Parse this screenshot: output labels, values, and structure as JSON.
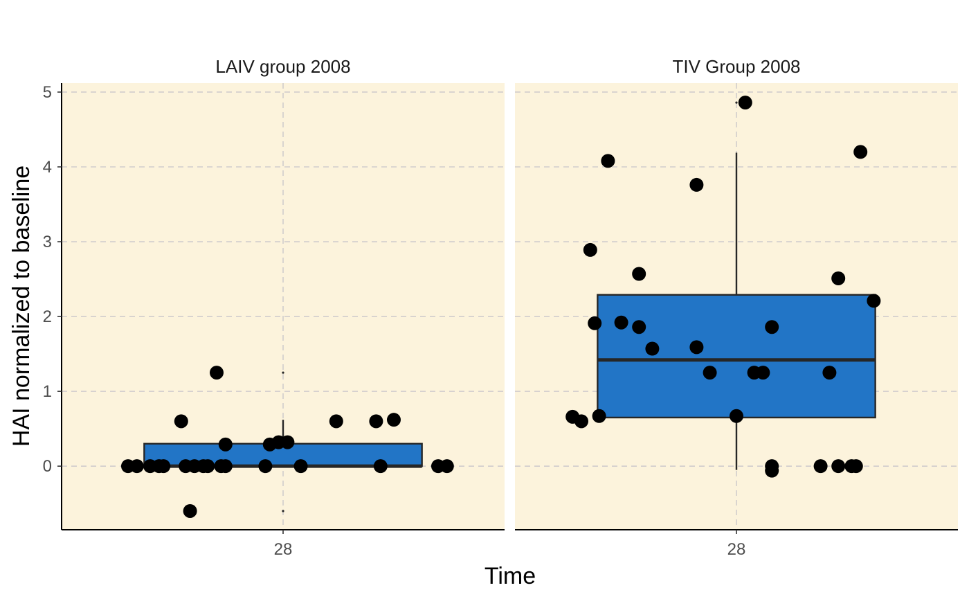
{
  "chart_data": {
    "type": "boxplot",
    "xlabel": "Time",
    "ylabel": "HAI normalized to baseline",
    "ylim": [
      -0.85,
      5.12
    ],
    "yticks": [
      0,
      1,
      2,
      3,
      4,
      5
    ],
    "grid": true,
    "grid_style": "dashed",
    "colors": {
      "panel_background": "#fcf3dc",
      "box_fill": "#2275c6",
      "box_line": "#262626",
      "point": "#000000",
      "grid": "#d0cccc"
    },
    "panels": [
      {
        "title": "LAIV group 2008",
        "category": "28",
        "box": {
          "q1": 0.0,
          "median": 0.0,
          "q3": 0.3,
          "whisker_low": 0.0,
          "whisker_high": 0.62
        },
        "outliers": [
          1.25,
          -0.6
        ],
        "points": [
          {
            "jitter": -0.35,
            "y": 0.0
          },
          {
            "jitter": -0.33,
            "y": 0.0
          },
          {
            "jitter": -0.3,
            "y": 0.0
          },
          {
            "jitter": -0.28,
            "y": 0.0
          },
          {
            "jitter": -0.27,
            "y": 0.0
          },
          {
            "jitter": -0.23,
            "y": 0.6
          },
          {
            "jitter": -0.22,
            "y": 0.0
          },
          {
            "jitter": -0.21,
            "y": -0.6
          },
          {
            "jitter": -0.2,
            "y": 0.0
          },
          {
            "jitter": -0.18,
            "y": 0.0
          },
          {
            "jitter": -0.17,
            "y": 0.0
          },
          {
            "jitter": -0.15,
            "y": 1.25
          },
          {
            "jitter": -0.14,
            "y": 0.0
          },
          {
            "jitter": -0.13,
            "y": 0.0
          },
          {
            "jitter": -0.13,
            "y": 0.29
          },
          {
            "jitter": -0.04,
            "y": 0.0
          },
          {
            "jitter": -0.03,
            "y": 0.29
          },
          {
            "jitter": -0.01,
            "y": 0.32
          },
          {
            "jitter": 0.01,
            "y": 0.32
          },
          {
            "jitter": 0.04,
            "y": 0.0
          },
          {
            "jitter": 0.12,
            "y": 0.6
          },
          {
            "jitter": 0.21,
            "y": 0.6
          },
          {
            "jitter": 0.22,
            "y": 0.0
          },
          {
            "jitter": 0.25,
            "y": 0.62
          },
          {
            "jitter": 0.35,
            "y": 0.0
          },
          {
            "jitter": 0.37,
            "y": 0.0
          }
        ]
      },
      {
        "title": "TIV Group 2008",
        "category": "28",
        "box": {
          "q1": 0.65,
          "median": 1.42,
          "q3": 2.29,
          "whisker_low": -0.05,
          "whisker_high": 4.19
        },
        "outliers": [
          4.86
        ],
        "points": [
          {
            "jitter": -0.37,
            "y": 0.66
          },
          {
            "jitter": -0.35,
            "y": 0.6
          },
          {
            "jitter": -0.33,
            "y": 2.89
          },
          {
            "jitter": -0.32,
            "y": 1.91
          },
          {
            "jitter": -0.31,
            "y": 0.67
          },
          {
            "jitter": -0.29,
            "y": 4.08
          },
          {
            "jitter": -0.26,
            "y": 1.92
          },
          {
            "jitter": -0.22,
            "y": 1.86
          },
          {
            "jitter": -0.22,
            "y": 2.57
          },
          {
            "jitter": -0.19,
            "y": 1.57
          },
          {
            "jitter": -0.09,
            "y": 1.59
          },
          {
            "jitter": -0.09,
            "y": 3.76
          },
          {
            "jitter": -0.06,
            "y": 1.25
          },
          {
            "jitter": 0.0,
            "y": 0.67
          },
          {
            "jitter": 0.02,
            "y": 4.86
          },
          {
            "jitter": 0.04,
            "y": 1.25
          },
          {
            "jitter": 0.06,
            "y": 1.25
          },
          {
            "jitter": 0.08,
            "y": 1.86
          },
          {
            "jitter": 0.08,
            "y": 0.0
          },
          {
            "jitter": 0.08,
            "y": -0.06
          },
          {
            "jitter": 0.19,
            "y": 0.0
          },
          {
            "jitter": 0.21,
            "y": 1.25
          },
          {
            "jitter": 0.23,
            "y": 0.0
          },
          {
            "jitter": 0.23,
            "y": 2.51
          },
          {
            "jitter": 0.26,
            "y": 0.0
          },
          {
            "jitter": 0.27,
            "y": 0.0
          },
          {
            "jitter": 0.28,
            "y": 4.2
          },
          {
            "jitter": 0.31,
            "y": 2.21
          }
        ]
      }
    ]
  }
}
